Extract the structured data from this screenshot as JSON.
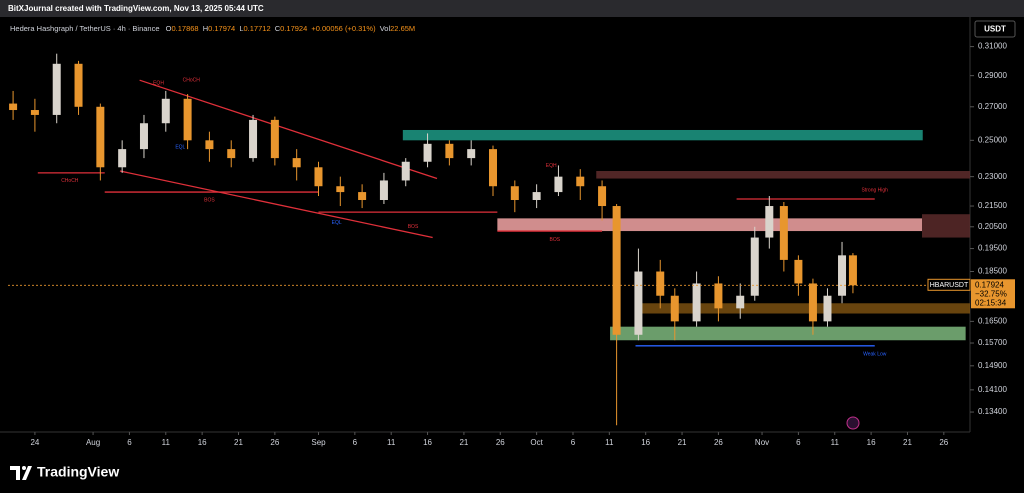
{
  "chart_data": {
    "type": "candlestick",
    "header": "BitXJournal created with TradingView.com, Nov 13, 2025 05:44 UTC",
    "symbol": "Hedera Hashgraph / TetherUS · 4h · Binance",
    "quote": {
      "open_prefix": "O",
      "open": 0.17868,
      "high_prefix": "H",
      "high": 0.17974,
      "low_prefix": "L",
      "low": 0.17712,
      "close_prefix": "C",
      "close": 0.17924,
      "change": "+0.00056",
      "change_pct": "(+0.31%)",
      "volume_prefix": "Vol",
      "volume": "22.65M"
    },
    "currency": "USDT",
    "price_tag": {
      "ticker": "HBARUSDT",
      "change_pct": "−32.75%",
      "countdown": "02:15:34"
    },
    "brand": "TradingView",
    "log_scale": true,
    "up_color": "#d9d4cc",
    "down_color": "#e8962e",
    "price_line_color": "#e8962e",
    "xlim": [
      -3.7,
      128.6
    ],
    "ylim": [
      0.128,
      0.328
    ],
    "xticks": [
      {
        "value": 0,
        "label": "24"
      },
      {
        "value": 8,
        "label": "Aug"
      },
      {
        "value": 13,
        "label": "6"
      },
      {
        "value": 18,
        "label": "11"
      },
      {
        "value": 23,
        "label": "16"
      },
      {
        "value": 28,
        "label": "21"
      },
      {
        "value": 33,
        "label": "26"
      },
      {
        "value": 39,
        "label": "Sep"
      },
      {
        "value": 44,
        "label": "6"
      },
      {
        "value": 49,
        "label": "11"
      },
      {
        "value": 54,
        "label": "16"
      },
      {
        "value": 59,
        "label": "21"
      },
      {
        "value": 64,
        "label": "26"
      },
      {
        "value": 69,
        "label": "Oct"
      },
      {
        "value": 74,
        "label": "6"
      },
      {
        "value": 79,
        "label": "11"
      },
      {
        "value": 84,
        "label": "16"
      },
      {
        "value": 89,
        "label": "21"
      },
      {
        "value": 94,
        "label": "26"
      },
      {
        "value": 100,
        "label": "Nov"
      },
      {
        "value": 105,
        "label": "6"
      },
      {
        "value": 110,
        "label": "11"
      },
      {
        "value": 115,
        "label": "16"
      },
      {
        "value": 120,
        "label": "21"
      },
      {
        "value": 125,
        "label": "26"
      }
    ],
    "yticks": [
      {
        "value": 0.31,
        "label": "0.31000"
      },
      {
        "value": 0.29,
        "label": "0.29000"
      },
      {
        "value": 0.27,
        "label": "0.27000"
      },
      {
        "value": 0.25,
        "label": "0.25000"
      },
      {
        "value": 0.23,
        "label": "0.23000"
      },
      {
        "value": 0.215,
        "label": "0.21500"
      },
      {
        "value": 0.205,
        "label": "0.20500"
      },
      {
        "value": 0.195,
        "label": "0.19500"
      },
      {
        "value": 0.185,
        "label": "0.18500"
      },
      {
        "value": 0.165,
        "label": "0.16500"
      },
      {
        "value": 0.157,
        "label": "0.15700"
      },
      {
        "value": 0.149,
        "label": "0.14900"
      },
      {
        "value": 0.141,
        "label": "0.14100"
      },
      {
        "value": 0.134,
        "label": "0.13400"
      }
    ],
    "candles": [
      {
        "x": -3,
        "open": 0.272,
        "high": 0.28,
        "low": 0.262,
        "close": 0.268
      },
      {
        "x": 0,
        "open": 0.268,
        "high": 0.275,
        "low": 0.255,
        "close": 0.265
      },
      {
        "x": 3,
        "open": 0.265,
        "high": 0.305,
        "low": 0.26,
        "close": 0.298
      },
      {
        "x": 6,
        "open": 0.298,
        "high": 0.3,
        "low": 0.265,
        "close": 0.27
      },
      {
        "x": 9,
        "open": 0.27,
        "high": 0.272,
        "low": 0.228,
        "close": 0.235
      },
      {
        "x": 12,
        "open": 0.235,
        "high": 0.25,
        "low": 0.232,
        "close": 0.245
      },
      {
        "x": 15,
        "open": 0.245,
        "high": 0.265,
        "low": 0.24,
        "close": 0.26
      },
      {
        "x": 18,
        "open": 0.26,
        "high": 0.28,
        "low": 0.255,
        "close": 0.275
      },
      {
        "x": 21,
        "open": 0.275,
        "high": 0.278,
        "low": 0.245,
        "close": 0.25
      },
      {
        "x": 24,
        "open": 0.25,
        "high": 0.255,
        "low": 0.238,
        "close": 0.245
      },
      {
        "x": 27,
        "open": 0.245,
        "high": 0.25,
        "low": 0.235,
        "close": 0.24
      },
      {
        "x": 30,
        "open": 0.24,
        "high": 0.265,
        "low": 0.238,
        "close": 0.262
      },
      {
        "x": 33,
        "open": 0.262,
        "high": 0.264,
        "low": 0.236,
        "close": 0.24
      },
      {
        "x": 36,
        "open": 0.24,
        "high": 0.245,
        "low": 0.228,
        "close": 0.235
      },
      {
        "x": 39,
        "open": 0.235,
        "high": 0.238,
        "low": 0.22,
        "close": 0.225
      },
      {
        "x": 42,
        "open": 0.225,
        "high": 0.23,
        "low": 0.215,
        "close": 0.222
      },
      {
        "x": 45,
        "open": 0.222,
        "high": 0.226,
        "low": 0.214,
        "close": 0.218
      },
      {
        "x": 48,
        "open": 0.218,
        "high": 0.232,
        "low": 0.216,
        "close": 0.228
      },
      {
        "x": 51,
        "open": 0.228,
        "high": 0.24,
        "low": 0.225,
        "close": 0.238
      },
      {
        "x": 54,
        "open": 0.238,
        "high": 0.254,
        "low": 0.235,
        "close": 0.248
      },
      {
        "x": 57,
        "open": 0.248,
        "high": 0.25,
        "low": 0.236,
        "close": 0.24
      },
      {
        "x": 60,
        "open": 0.24,
        "high": 0.25,
        "low": 0.236,
        "close": 0.245
      },
      {
        "x": 63,
        "open": 0.245,
        "high": 0.247,
        "low": 0.22,
        "close": 0.225
      },
      {
        "x": 66,
        "open": 0.225,
        "high": 0.228,
        "low": 0.212,
        "close": 0.218
      },
      {
        "x": 69,
        "open": 0.218,
        "high": 0.226,
        "low": 0.214,
        "close": 0.222
      },
      {
        "x": 72,
        "open": 0.222,
        "high": 0.236,
        "low": 0.22,
        "close": 0.23
      },
      {
        "x": 75,
        "open": 0.23,
        "high": 0.234,
        "low": 0.218,
        "close": 0.225
      },
      {
        "x": 78,
        "open": 0.225,
        "high": 0.228,
        "low": 0.208,
        "close": 0.215
      },
      {
        "x": 80,
        "open": 0.215,
        "high": 0.216,
        "low": 0.13,
        "close": 0.16
      },
      {
        "x": 83,
        "open": 0.16,
        "high": 0.195,
        "low": 0.158,
        "close": 0.185
      },
      {
        "x": 86,
        "open": 0.185,
        "high": 0.19,
        "low": 0.17,
        "close": 0.175
      },
      {
        "x": 88,
        "open": 0.175,
        "high": 0.178,
        "low": 0.158,
        "close": 0.165
      },
      {
        "x": 91,
        "open": 0.165,
        "high": 0.185,
        "low": 0.163,
        "close": 0.18
      },
      {
        "x": 94,
        "open": 0.18,
        "high": 0.183,
        "low": 0.165,
        "close": 0.17
      },
      {
        "x": 97,
        "open": 0.17,
        "high": 0.18,
        "low": 0.166,
        "close": 0.175
      },
      {
        "x": 99,
        "open": 0.175,
        "high": 0.205,
        "low": 0.173,
        "close": 0.2
      },
      {
        "x": 101,
        "open": 0.2,
        "high": 0.22,
        "low": 0.195,
        "close": 0.215
      },
      {
        "x": 103,
        "open": 0.215,
        "high": 0.217,
        "low": 0.185,
        "close": 0.19
      },
      {
        "x": 105,
        "open": 0.19,
        "high": 0.192,
        "low": 0.175,
        "close": 0.18
      },
      {
        "x": 107,
        "open": 0.18,
        "high": 0.182,
        "low": 0.16,
        "close": 0.165
      },
      {
        "x": 109,
        "open": 0.165,
        "high": 0.178,
        "low": 0.163,
        "close": 0.175
      },
      {
        "x": 111,
        "open": 0.175,
        "high": 0.198,
        "low": 0.172,
        "close": 0.192
      },
      {
        "x": 112.5,
        "open": 0.192,
        "high": 0.193,
        "low": 0.176,
        "close": 0.17924
      }
    ],
    "zones": [
      {
        "x0": 50.6,
        "x1": 122.1,
        "y0": 0.25,
        "y1": 0.256,
        "color": "#1a8a78",
        "opacity": 0.95
      },
      {
        "x0": 77.2,
        "x1": 128.6,
        "y0": 0.229,
        "y1": 0.233,
        "color": "#5a2a2a",
        "opacity": 0.9
      },
      {
        "x0": 63.6,
        "x1": 122,
        "y0": 0.203,
        "y1": 0.209,
        "color": "#f4a6a6",
        "opacity": 0.85
      },
      {
        "x0": 122,
        "x1": 128.6,
        "y0": 0.2,
        "y1": 0.211,
        "color": "#5a2a2a",
        "opacity": 0.85
      },
      {
        "x0": 82.6,
        "x1": 128.6,
        "y0": 0.168,
        "y1": 0.172,
        "color": "#7a5010",
        "opacity": 0.85
      },
      {
        "x0": 79.1,
        "x1": 128,
        "y0": 0.158,
        "y1": 0.163,
        "color": "#8fd18f",
        "opacity": 0.75
      }
    ],
    "lines": [
      {
        "x0": 14.4,
        "y0": 0.287,
        "x1": 55.3,
        "y1": 0.229,
        "color": "#e0303a"
      },
      {
        "x0": 11.7,
        "y0": 0.233,
        "x1": 54.7,
        "y1": 0.2,
        "color": "#e0303a"
      },
      {
        "x0": 0.4,
        "y0": 0.232,
        "x1": 9.6,
        "y1": 0.232,
        "color": "#e0303a"
      },
      {
        "x0": 9.6,
        "y0": 0.222,
        "x1": 39,
        "y1": 0.222,
        "color": "#e0303a"
      },
      {
        "x0": 39,
        "y0": 0.212,
        "x1": 63.6,
        "y1": 0.212,
        "color": "#e0303a"
      },
      {
        "x0": 63.6,
        "x1": 78,
        "y0": 0.203,
        "y1": 0.203,
        "color": "#e0303a"
      },
      {
        "x0": 96.5,
        "x1": 115.5,
        "y0": 0.2185,
        "y1": 0.2185,
        "color": "#e0303a"
      },
      {
        "x0": 82.6,
        "x1": 115.5,
        "y0": 0.156,
        "y1": 0.156,
        "color": "#2962ff"
      }
    ],
    "annotations": [
      {
        "text": "CHoCH",
        "x": 4.8,
        "y": 0.228,
        "color": "#e0303a"
      },
      {
        "text": "BOS",
        "x": 24,
        "y": 0.218,
        "color": "#e0303a"
      },
      {
        "text": "BOS",
        "x": 52,
        "y": 0.205,
        "color": "#e0303a"
      },
      {
        "text": "BOS",
        "x": 71.5,
        "y": 0.199,
        "color": "#e0303a"
      },
      {
        "text": "EQH",
        "x": 17,
        "y": 0.285,
        "color": "#e0303a"
      },
      {
        "text": "CHoCH",
        "x": 21.5,
        "y": 0.287,
        "color": "#e0303a"
      },
      {
        "text": "EQL",
        "x": 20,
        "y": 0.246,
        "color": "#2962ff"
      },
      {
        "text": "EQL",
        "x": 41.5,
        "y": 0.207,
        "color": "#2962ff"
      },
      {
        "text": "EQH",
        "x": 71,
        "y": 0.236,
        "color": "#e0303a"
      },
      {
        "text": "Strong High",
        "x": 115.5,
        "y": 0.223,
        "color": "#e0303a"
      },
      {
        "text": "Weak Low",
        "x": 115.5,
        "y": 0.153,
        "color": "#2962ff"
      }
    ]
  }
}
